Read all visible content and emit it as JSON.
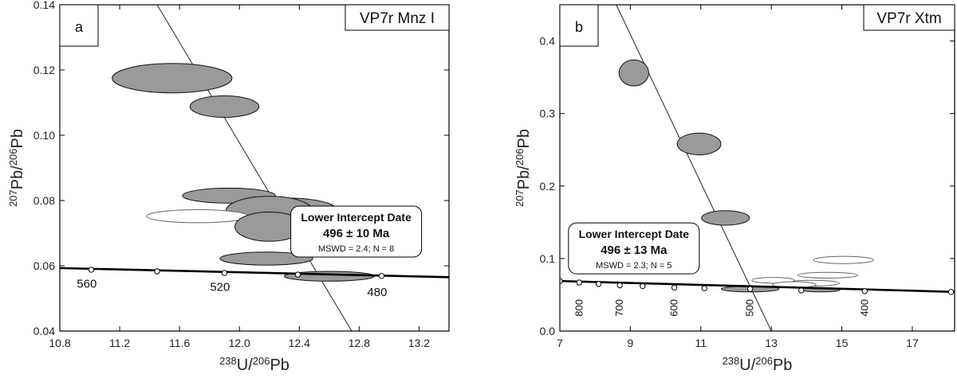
{
  "chart_data": [
    {
      "id": "a",
      "type": "scatter",
      "panel_label": "a",
      "title": "VP7r Mnz I",
      "xlabel": {
        "sup1": "238",
        "base1": "U/",
        "sup2": "206",
        "base2": "Pb"
      },
      "ylabel": {
        "sup1": "207",
        "base1": "Pb/",
        "sup2": "206",
        "base2": "Pb"
      },
      "xlim": [
        10.8,
        13.4
      ],
      "ylim": [
        0.04,
        0.14
      ],
      "xticks": [
        10.8,
        11.2,
        11.6,
        12.0,
        12.4,
        12.8,
        13.2
      ],
      "xtick_labels": [
        "10.8",
        "11.2",
        "11.6",
        "12.0",
        "12.4",
        "12.8",
        "13.2"
      ],
      "yticks": [
        0.04,
        0.06,
        0.08,
        0.1,
        0.12,
        0.14
      ],
      "ytick_labels": [
        "0.04",
        "0.06",
        "0.08",
        "0.10",
        "0.12",
        "0.14"
      ],
      "ellipses": [
        {
          "x": 11.55,
          "y": 0.1175,
          "rx": 0.4,
          "ry": 0.0045,
          "filled": true
        },
        {
          "x": 11.9,
          "y": 0.1088,
          "rx": 0.23,
          "ry": 0.0033,
          "filled": true
        },
        {
          "x": 11.93,
          "y": 0.0815,
          "rx": 0.31,
          "ry": 0.0023,
          "filled": true
        },
        {
          "x": 12.3,
          "y": 0.0775,
          "rx": 0.34,
          "ry": 0.0033,
          "filled": true
        },
        {
          "x": 12.2,
          "y": 0.0768,
          "rx": 0.29,
          "ry": 0.0045,
          "filled": true
        },
        {
          "x": 11.72,
          "y": 0.0752,
          "rx": 0.34,
          "ry": 0.002,
          "filled": false
        },
        {
          "x": 12.2,
          "y": 0.072,
          "rx": 0.23,
          "ry": 0.0045,
          "filled": true
        },
        {
          "x": 12.18,
          "y": 0.0622,
          "rx": 0.31,
          "ry": 0.002,
          "filled": true
        },
        {
          "x": 12.6,
          "y": 0.0568,
          "rx": 0.3,
          "ry": 0.0015,
          "filled": true
        }
      ],
      "regression_line": [
        [
          11.45,
          0.14
        ],
        [
          12.75,
          0.04
        ]
      ],
      "concordia": {
        "line": [
          [
            10.8,
            0.0593
          ],
          [
            13.4,
            0.0565
          ]
        ],
        "markers": [
          [
            11.01,
            0.0588
          ],
          [
            11.45,
            0.0583
          ],
          [
            11.9,
            0.0578
          ],
          [
            12.39,
            0.0573
          ],
          [
            12.95,
            0.0569
          ]
        ],
        "age_labels": [
          {
            "text": "560",
            "x": 10.98,
            "y": 0.0545
          },
          {
            "text": "520",
            "x": 11.87,
            "y": 0.0535
          },
          {
            "text": "480",
            "x": 12.92,
            "y": 0.052
          }
        ]
      },
      "result_box": {
        "heading": "Lower Intercept Date",
        "value": "496 ± 10 Ma",
        "stats": "MSWD = 2.4; N = 8",
        "center": [
          12.78,
          0.0705
        ]
      }
    },
    {
      "id": "b",
      "type": "scatter",
      "panel_label": "b",
      "title": "VP7r Xtm",
      "xlabel": {
        "sup1": "238",
        "base1": "U/",
        "sup2": "206",
        "base2": "Pb"
      },
      "ylabel": {
        "sup1": "207",
        "base1": "Pb/",
        "sup2": "206",
        "base2": "Pb"
      },
      "xlim": [
        7,
        18.2
      ],
      "ylim": [
        0.0,
        0.45
      ],
      "xticks": [
        7,
        9,
        11,
        13,
        15,
        17
      ],
      "xtick_labels": [
        "7",
        "9",
        "11",
        "13",
        "15",
        "17"
      ],
      "yticks": [
        0.0,
        0.1,
        0.2,
        0.3,
        0.4
      ],
      "ytick_labels": [
        "0.0",
        "0.1",
        "0.2",
        "0.3",
        "0.4"
      ],
      "ellipses": [
        {
          "x": 9.1,
          "y": 0.356,
          "rx": 0.42,
          "ry": 0.018,
          "filled": true
        },
        {
          "x": 10.95,
          "y": 0.258,
          "rx": 0.62,
          "ry": 0.015,
          "filled": true
        },
        {
          "x": 11.7,
          "y": 0.156,
          "rx": 0.68,
          "ry": 0.01,
          "filled": true
        },
        {
          "x": 15.05,
          "y": 0.098,
          "rx": 0.85,
          "ry": 0.005,
          "filled": false
        },
        {
          "x": 14.6,
          "y": 0.077,
          "rx": 0.85,
          "ry": 0.004,
          "filled": false
        },
        {
          "x": 14.15,
          "y": 0.066,
          "rx": 0.78,
          "ry": 0.004,
          "filled": false
        },
        {
          "x": 13.05,
          "y": 0.07,
          "rx": 0.6,
          "ry": 0.004,
          "filled": false
        },
        {
          "x": 13.65,
          "y": 0.064,
          "rx": 0.62,
          "ry": 0.004,
          "filled": false
        },
        {
          "x": 12.4,
          "y": 0.058,
          "rx": 0.82,
          "ry": 0.004,
          "filled": true
        },
        {
          "x": 14.4,
          "y": 0.057,
          "rx": 0.55,
          "ry": 0.003,
          "filled": true
        }
      ],
      "regression_line": [
        [
          8.6,
          0.45
        ],
        [
          13.0,
          0.0
        ]
      ],
      "concordia": {
        "line": [
          [
            7.0,
            0.069
          ],
          [
            18.2,
            0.054
          ]
        ],
        "markers": [
          [
            7.0,
            0.069
          ],
          [
            7.55,
            0.067
          ],
          [
            8.1,
            0.065
          ],
          [
            8.7,
            0.063
          ],
          [
            9.35,
            0.062
          ],
          [
            10.25,
            0.06
          ],
          [
            11.1,
            0.059
          ],
          [
            12.4,
            0.058
          ],
          [
            13.85,
            0.056
          ],
          [
            15.65,
            0.055
          ],
          [
            18.1,
            0.054
          ]
        ],
        "age_labels": [
          {
            "text": "800",
            "x": 7.55,
            "y": 0.032
          },
          {
            "text": "700",
            "x": 8.7,
            "y": 0.032
          },
          {
            "text": "600",
            "x": 10.25,
            "y": 0.032
          },
          {
            "text": "500",
            "x": 12.4,
            "y": 0.032
          },
          {
            "text": "400",
            "x": 15.65,
            "y": 0.032
          }
        ]
      },
      "result_box": {
        "heading": "Lower Intercept Date",
        "value": "496 ± 13 Ma",
        "stats": "MSWD = 2.3; N = 5",
        "center": [
          9.1,
          0.114
        ]
      }
    }
  ]
}
